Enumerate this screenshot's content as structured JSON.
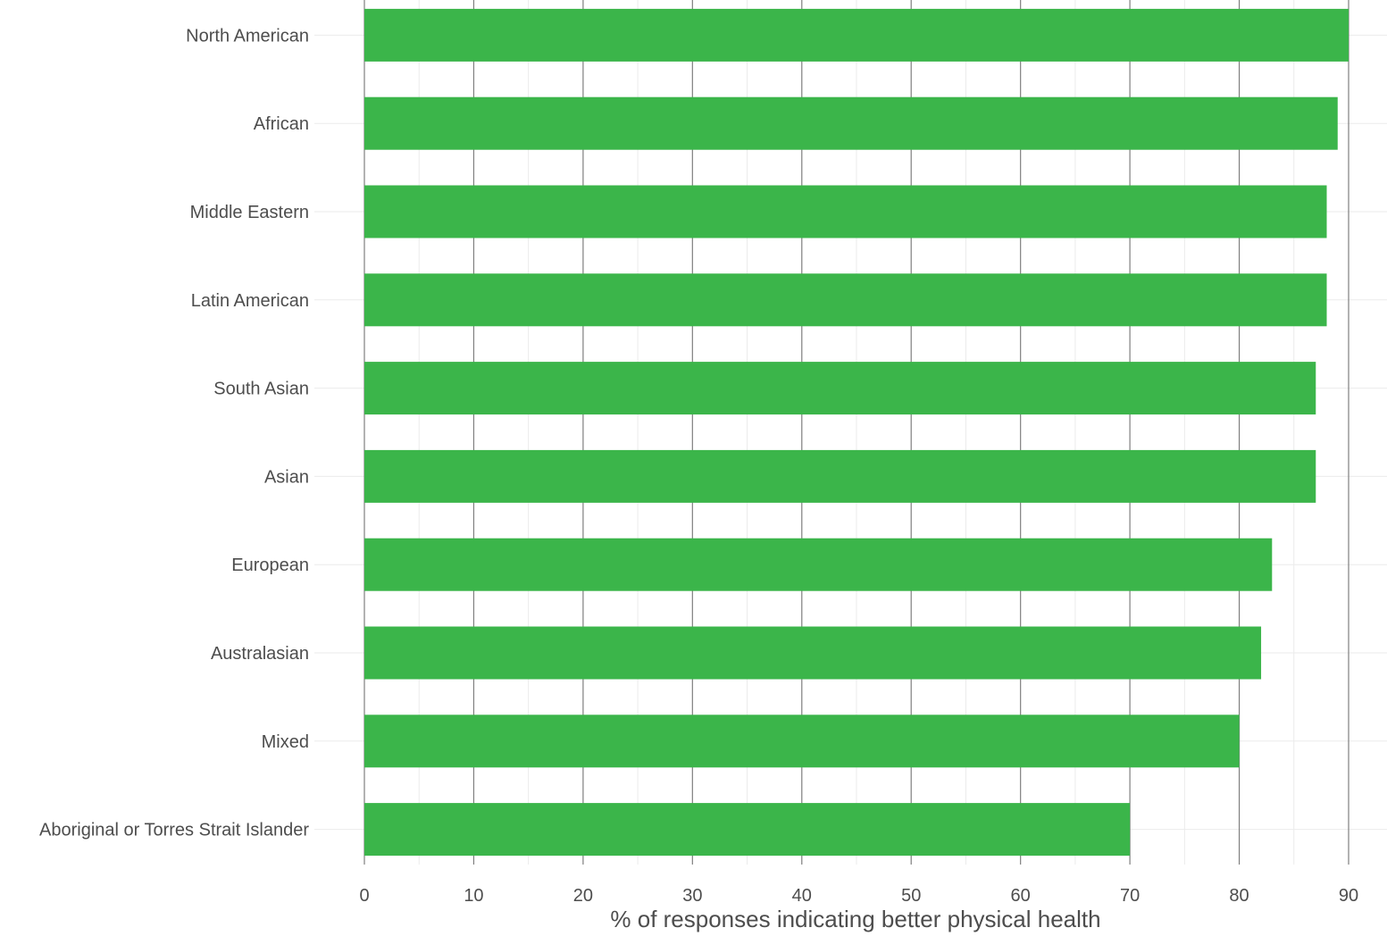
{
  "chart_data": {
    "type": "bar",
    "orientation": "horizontal",
    "categories": [
      "North American",
      "African",
      "Middle Eastern",
      "Latin American",
      "South Asian",
      "Asian",
      "European",
      "Australasian",
      "Mixed",
      "Aboriginal or Torres Strait Islander"
    ],
    "values": [
      90,
      89,
      88,
      88,
      87,
      87,
      83,
      82,
      80,
      70
    ],
    "xlabel": "% of responses indicating better physical health",
    "ylabel": "",
    "xlim": [
      0,
      90
    ],
    "xticks": [
      0,
      10,
      20,
      30,
      40,
      50,
      60,
      70,
      80,
      90
    ],
    "grid": true,
    "bar_color": "#3bb54a",
    "major_grid_color": "#7f7f7f",
    "minor_grid_color": "#ebebeb"
  }
}
